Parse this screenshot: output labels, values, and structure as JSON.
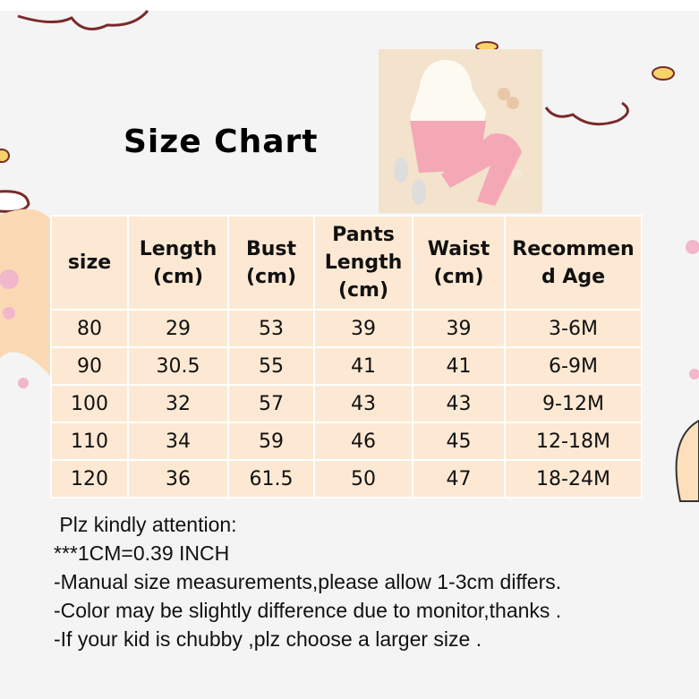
{
  "title": "Size Chart",
  "table": {
    "headers": [
      "size",
      "Length (cm)",
      "Bust (cm)",
      "Pants Length (cm)",
      "Waist (cm)",
      "Recommen d Age"
    ],
    "rows": [
      [
        "80",
        "29",
        "53",
        "39",
        "39",
        "3-6M"
      ],
      [
        "90",
        "30.5",
        "55",
        "41",
        "41",
        "6-9M"
      ],
      [
        "100",
        "32",
        "57",
        "43",
        "43",
        "9-12M"
      ],
      [
        "110",
        "34",
        "59",
        "46",
        "45",
        "12-18M"
      ],
      [
        "120",
        "36",
        "61.5",
        "50",
        "47",
        "18-24M"
      ]
    ]
  },
  "notes": [
    " Plz kindly attention:",
    "***1CM=0.39 INCH",
    "-Manual size measurements,please allow 1-3cm differs.",
    "-Color may be slightly difference due to monitor,thanks .",
    "-If your kid is chubby ,plz choose a larger size ."
  ],
  "colors": {
    "cell_bg": "#fde9d3",
    "background": "#f4f4f4"
  }
}
